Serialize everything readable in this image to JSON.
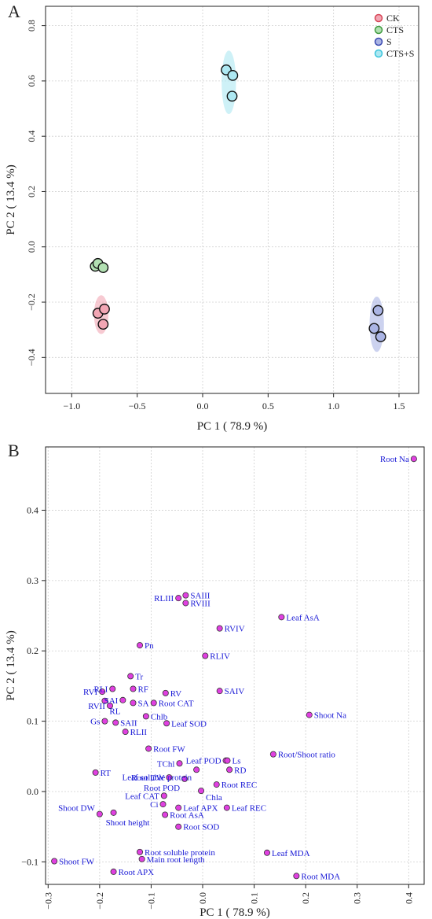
{
  "chart_data": [
    {
      "type": "scatter",
      "panel": "A",
      "xlabel": "PC 1 ( 78.9 %)",
      "ylabel": "PC 2 ( 13.4 %)",
      "xlim": [
        -1.2,
        1.65
      ],
      "ylim": [
        -0.53,
        0.87
      ],
      "xticks": [
        -1.0,
        -0.5,
        0.0,
        0.5,
        1.0,
        1.5
      ],
      "yticks": [
        -0.4,
        -0.2,
        0.0,
        0.2,
        0.4,
        0.6,
        0.8
      ],
      "xtick_labels": [
        "−1.0",
        "−0.5",
        "0.0",
        "0.5",
        "1.0",
        "1.5"
      ],
      "ytick_labels": [
        "−0.4",
        "−0.2",
        "0.0",
        "0.2",
        "0.4",
        "0.6",
        "0.8"
      ],
      "grid": true,
      "legend_position": "top-right",
      "series": [
        {
          "name": "CK",
          "color": "#d64555",
          "fill": "#f2a6b4",
          "ellipse": {
            "cx": -0.775,
            "cy": -0.245,
            "rx": 0.055,
            "ry": 0.07
          },
          "points": [
            [
              -0.8,
              -0.24
            ],
            [
              -0.75,
              -0.225
            ],
            [
              -0.76,
              -0.28
            ]
          ]
        },
        {
          "name": "CTS",
          "color": "#3f9a3f",
          "fill": "#b2e0b2",
          "ellipse": null,
          "points": [
            [
              -0.82,
              -0.07
            ],
            [
              -0.8,
              -0.06
            ],
            [
              -0.76,
              -0.075
            ]
          ]
        },
        {
          "name": "S",
          "color": "#3848b0",
          "fill": "#aab4e4",
          "ellipse": {
            "cx": 1.33,
            "cy": -0.28,
            "rx": 0.055,
            "ry": 0.1
          },
          "points": [
            [
              1.34,
              -0.23
            ],
            [
              1.31,
              -0.295
            ],
            [
              1.36,
              -0.325
            ]
          ]
        },
        {
          "name": "CTS+S",
          "color": "#3ac4dc",
          "fill": "#ade8f2",
          "ellipse": {
            "cx": 0.2,
            "cy": 0.595,
            "rx": 0.055,
            "ry": 0.115
          },
          "points": [
            [
              0.18,
              0.64
            ],
            [
              0.23,
              0.62
            ],
            [
              0.225,
              0.545
            ]
          ]
        }
      ]
    },
    {
      "type": "scatter",
      "panel": "B",
      "xlabel": "PC 1 ( 78.9 %)",
      "ylabel": "PC 2 ( 13.4 %)",
      "xlim": [
        -0.305,
        0.43
      ],
      "ylim": [
        -0.132,
        0.49
      ],
      "xticks": [
        -0.3,
        -0.2,
        -0.1,
        0.0,
        0.1,
        0.2,
        0.3,
        0.4
      ],
      "yticks": [
        -0.1,
        0.0,
        0.1,
        0.2,
        0.3,
        0.4
      ],
      "xtick_labels": [
        "−0.3",
        "−0.2",
        "−0.1",
        "0.0",
        "0.1",
        "0.2",
        "0.3",
        "0.4"
      ],
      "ytick_labels": [
        "−0.1",
        "0.0",
        "0.1",
        "0.2",
        "0.3",
        "0.4"
      ],
      "grid": true,
      "point_color": "#e040e0",
      "label_color": "#1a1ad6",
      "points": [
        {
          "label": "Root Na",
          "x": 0.41,
          "y": 0.473,
          "side": "left"
        },
        {
          "label": "SAIII",
          "x": -0.033,
          "y": 0.279,
          "side": "right"
        },
        {
          "label": "RLIII",
          "x": -0.047,
          "y": 0.275,
          "side": "left"
        },
        {
          "label": "RVIII",
          "x": -0.033,
          "y": 0.268,
          "side": "right"
        },
        {
          "label": "Leaf AsA",
          "x": 0.153,
          "y": 0.248,
          "side": "right"
        },
        {
          "label": "RVIV",
          "x": 0.033,
          "y": 0.232,
          "side": "right"
        },
        {
          "label": "Pn",
          "x": -0.122,
          "y": 0.208,
          "side": "right"
        },
        {
          "label": "RLIV",
          "x": 0.005,
          "y": 0.193,
          "side": "right"
        },
        {
          "label": "Tr",
          "x": -0.14,
          "y": 0.164,
          "side": "right"
        },
        {
          "label": "RVI",
          "x": -0.195,
          "y": 0.142,
          "side": "left"
        },
        {
          "label": "RLI",
          "x": -0.175,
          "y": 0.146,
          "side": "left"
        },
        {
          "label": "RF",
          "x": -0.135,
          "y": 0.146,
          "side": "right"
        },
        {
          "label": "RV",
          "x": -0.072,
          "y": 0.14,
          "side": "right"
        },
        {
          "label": "SAIV",
          "x": 0.033,
          "y": 0.143,
          "side": "right"
        },
        {
          "label": "SAI",
          "x": -0.155,
          "y": 0.13,
          "side": "left"
        },
        {
          "label": "RVII",
          "x": -0.18,
          "y": 0.122,
          "side": "left"
        },
        {
          "label": "SA",
          "x": -0.135,
          "y": 0.126,
          "side": "right"
        },
        {
          "label": "Root CAT",
          "x": -0.095,
          "y": 0.126,
          "side": "right"
        },
        {
          "label": "RL",
          "x": -0.19,
          "y": 0.129,
          "side": "right",
          "dy": 13
        },
        {
          "label": "Chlb",
          "x": -0.11,
          "y": 0.107,
          "side": "right"
        },
        {
          "label": "Shoot Na",
          "x": 0.207,
          "y": 0.109,
          "side": "right"
        },
        {
          "label": "Gs",
          "x": -0.19,
          "y": 0.1,
          "side": "left"
        },
        {
          "label": "SAII",
          "x": -0.169,
          "y": 0.098,
          "side": "right"
        },
        {
          "label": "Leaf SOD",
          "x": -0.07,
          "y": 0.097,
          "side": "right"
        },
        {
          "label": "RLII",
          "x": -0.15,
          "y": 0.085,
          "side": "right"
        },
        {
          "label": "Root FW",
          "x": -0.105,
          "y": 0.061,
          "side": "right"
        },
        {
          "label": "Root/Shoot ratio",
          "x": 0.137,
          "y": 0.053,
          "side": "right"
        },
        {
          "label": "Leaf POD",
          "x": 0.045,
          "y": 0.044,
          "side": "left"
        },
        {
          "label": "Ls",
          "x": 0.048,
          "y": 0.044,
          "side": "right"
        },
        {
          "label": "TChl",
          "x": -0.045,
          "y": 0.04,
          "side": "left"
        },
        {
          "label": "RD",
          "x": 0.052,
          "y": 0.031,
          "side": "right"
        },
        {
          "label": "Leaf soluble protein",
          "x": -0.012,
          "y": 0.031,
          "side": "left",
          "dy": 9
        },
        {
          "label": "RT",
          "x": -0.208,
          "y": 0.027,
          "side": "right"
        },
        {
          "label": "Root DW",
          "x": -0.065,
          "y": 0.02,
          "side": "left"
        },
        {
          "label": "Root POD",
          "x": -0.035,
          "y": 0.018,
          "side": "left",
          "dy": 11
        },
        {
          "label": "Root REC",
          "x": 0.027,
          "y": 0.01,
          "side": "right"
        },
        {
          "label": "Chla",
          "x": -0.003,
          "y": 0.001,
          "side": "right",
          "dy": 8
        },
        {
          "label": "Leaf CAT",
          "x": -0.075,
          "y": -0.006,
          "side": "left"
        },
        {
          "label": "Shoot DW",
          "x": -0.2,
          "y": -0.032,
          "side": "left",
          "dy": -8
        },
        {
          "label": "Ci",
          "x": -0.077,
          "y": -0.018,
          "side": "left"
        },
        {
          "label": "Leaf APX",
          "x": -0.047,
          "y": -0.023,
          "side": "right"
        },
        {
          "label": "Leaf REC",
          "x": 0.047,
          "y": -0.023,
          "side": "right"
        },
        {
          "label": "Root AsA",
          "x": -0.073,
          "y": -0.033,
          "side": "right"
        },
        {
          "label": "Shoot height",
          "x": -0.173,
          "y": -0.03,
          "side": "right",
          "dx": -16,
          "dy": 12
        },
        {
          "label": "Root SOD",
          "x": -0.047,
          "y": -0.05,
          "side": "right"
        },
        {
          "label": "Root soluble protein",
          "x": -0.122,
          "y": -0.086,
          "side": "right"
        },
        {
          "label": "Leaf MDA",
          "x": 0.125,
          "y": -0.087,
          "side": "right"
        },
        {
          "label": "Main root length",
          "x": -0.118,
          "y": -0.096,
          "side": "right"
        },
        {
          "label": "Shoot FW",
          "x": -0.288,
          "y": -0.099,
          "side": "right"
        },
        {
          "label": "Root APX",
          "x": -0.173,
          "y": -0.114,
          "side": "right"
        },
        {
          "label": "Root MDA",
          "x": 0.182,
          "y": -0.12,
          "side": "right"
        }
      ]
    }
  ]
}
